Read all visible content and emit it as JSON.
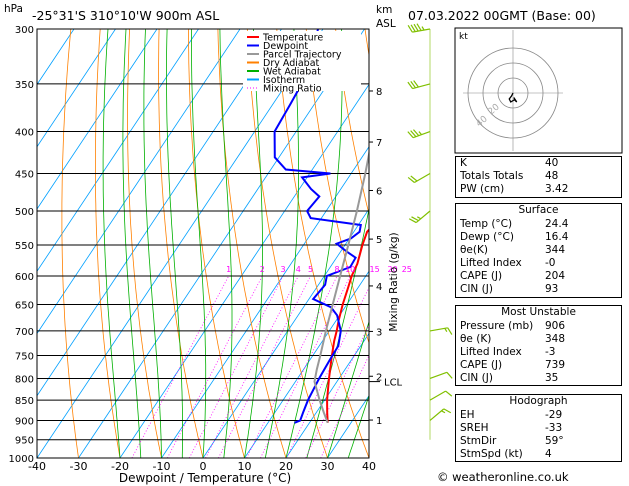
{
  "header": {
    "pressure_unit": "hPa",
    "height_unit_1": "km",
    "height_unit_2": "ASL",
    "location": "-25°31'S 310°10'W 900m ASL",
    "datetime": "07.03.2022 00GMT (Base: 00)"
  },
  "legend": [
    {
      "label": "Temperature",
      "color": "#ff0000"
    },
    {
      "label": "Dewpoint",
      "color": "#0000ff"
    },
    {
      "label": "Parcel Trajectory",
      "color": "#999999"
    },
    {
      "label": "Dry Adiabat",
      "color": "#ff8000"
    },
    {
      "label": "Wet Adiabat",
      "color": "#00b000"
    },
    {
      "label": "Isotherm",
      "color": "#00a0ff"
    },
    {
      "label": "Mixing Ratio",
      "color": "#ff00ff"
    }
  ],
  "chart_data": {
    "type": "line",
    "title": "-25°31'S 310°10'W 900m ASL",
    "xlabel": "Dewpoint / Temperature (°C)",
    "ylabel": "hPa",
    "mixing_ratio_label": "Mixing Ratio (g/kg)",
    "x_ticks": [
      -40,
      -30,
      -20,
      -10,
      0,
      10,
      20,
      30,
      40
    ],
    "xlim": [
      -40,
      40
    ],
    "pressure_levels": [
      300,
      350,
      400,
      450,
      500,
      550,
      600,
      650,
      700,
      750,
      800,
      850,
      900,
      950,
      1000
    ],
    "ylim": [
      1000,
      300
    ],
    "mixing_ratio_values": [
      "1",
      "2",
      "3",
      "4",
      "5",
      "8",
      "10",
      "15",
      "20",
      "25"
    ],
    "km_ticks": [
      {
        "label": "8",
        "p": 357
      },
      {
        "label": "7",
        "p": 412
      },
      {
        "label": "6",
        "p": 472
      },
      {
        "label": "5",
        "p": 541
      },
      {
        "label": "4",
        "p": 617
      },
      {
        "label": "3",
        "p": 701
      },
      {
        "label": "2",
        "p": 795
      },
      {
        "label": "1",
        "p": 899
      }
    ],
    "lcl_label": "LCL",
    "lcl_pressure": 807,
    "series": [
      {
        "name": "Temperature",
        "color": "#ff0000",
        "points": [
          [
            906,
            24.4
          ],
          [
            900,
            24.0
          ],
          [
            880,
            22.6
          ],
          [
            850,
            20.6
          ],
          [
            820,
            18.8
          ],
          [
            800,
            17.6
          ],
          [
            770,
            15.8
          ],
          [
            750,
            14.6
          ],
          [
            720,
            12.8
          ],
          [
            700,
            11.8
          ],
          [
            680,
            10.6
          ],
          [
            650,
            9.0
          ],
          [
            620,
            7.6
          ],
          [
            600,
            6.6
          ],
          [
            580,
            6.0
          ],
          [
            560,
            4.8
          ],
          [
            550,
            4.2
          ],
          [
            530,
            3.2
          ],
          [
            520,
            3.6
          ],
          [
            500,
            1.6
          ],
          [
            480,
            -0.4
          ],
          [
            460,
            -1.4
          ],
          [
            450,
            -2.4
          ],
          [
            420,
            -5.0
          ],
          [
            400,
            -7.8
          ],
          [
            370,
            -11.8
          ],
          [
            350,
            -15.2
          ],
          [
            320,
            -20.0
          ],
          [
            300,
            -23.8
          ]
        ]
      },
      {
        "name": "Dewpoint",
        "color": "#0000ff",
        "points": [
          [
            906,
            16.4
          ],
          [
            900,
            17.4
          ],
          [
            880,
            16.8
          ],
          [
            850,
            16.0
          ],
          [
            800,
            15.2
          ],
          [
            760,
            14.8
          ],
          [
            730,
            14.6
          ],
          [
            700,
            12.8
          ],
          [
            670,
            9.4
          ],
          [
            655,
            6.6
          ],
          [
            640,
            1.0
          ],
          [
            615,
            1.6
          ],
          [
            600,
            0.6
          ],
          [
            585,
            4.8
          ],
          [
            570,
            4.6
          ],
          [
            560,
            1.4
          ],
          [
            548,
            -2.2
          ],
          [
            540,
            0.4
          ],
          [
            530,
            1.4
          ],
          [
            520,
            0.6
          ],
          [
            510,
            -12.6
          ],
          [
            500,
            -14.6
          ],
          [
            480,
            -14.0
          ],
          [
            470,
            -17.2
          ],
          [
            455,
            -21.2
          ],
          [
            450,
            -15.0
          ],
          [
            445,
            -26.4
          ],
          [
            430,
            -31.0
          ],
          [
            400,
            -35.2
          ],
          [
            370,
            -35.8
          ],
          [
            340,
            -36.6
          ],
          [
            300,
            -41.2
          ]
        ]
      },
      {
        "name": "Parcel Trajectory",
        "color": "#999999",
        "points": [
          [
            906,
            24.4
          ],
          [
            880,
            21.8
          ],
          [
            850,
            18.8
          ],
          [
            807,
            14.6
          ],
          [
            780,
            13.2
          ],
          [
            750,
            11.8
          ],
          [
            700,
            9.2
          ],
          [
            650,
            6.6
          ],
          [
            600,
            3.8
          ],
          [
            550,
            0.8
          ],
          [
            500,
            -2.6
          ],
          [
            450,
            -6.6
          ],
          [
            400,
            -11.4
          ],
          [
            350,
            -17.4
          ],
          [
            300,
            -25.0
          ]
        ]
      }
    ],
    "hodograph": {
      "label": "kt",
      "ring_labels": [
        "20",
        "40"
      ],
      "points": [
        [
          0,
          0
        ],
        [
          -2,
          -4
        ],
        [
          -5,
          -8
        ],
        [
          -3,
          -12
        ],
        [
          2,
          -9
        ],
        [
          5,
          -12
        ],
        [
          1,
          -6
        ]
      ]
    },
    "wind_barbs": [
      {
        "p": 300,
        "dir": 260,
        "spd": 35
      },
      {
        "p": 350,
        "dir": 255,
        "spd": 30
      },
      {
        "p": 400,
        "dir": 250,
        "spd": 25
      },
      {
        "p": 450,
        "dir": 240,
        "spd": 20
      },
      {
        "p": 500,
        "dir": 230,
        "spd": 15
      },
      {
        "p": 700,
        "dir": 80,
        "spd": 5
      },
      {
        "p": 800,
        "dir": 70,
        "spd": 10
      },
      {
        "p": 850,
        "dir": 60,
        "spd": 10
      },
      {
        "p": 900,
        "dir": 50,
        "spd": 5
      }
    ]
  },
  "indices": {
    "general": [
      {
        "label": "K",
        "value": "40"
      },
      {
        "label": "Totals Totals",
        "value": "48"
      },
      {
        "label": "PW (cm)",
        "value": "3.42"
      }
    ],
    "surface_title": "Surface",
    "surface": [
      {
        "label": "Temp (°C)",
        "value": "24.4"
      },
      {
        "label": "Dewp (°C)",
        "value": "16.4"
      },
      {
        "label": "θe(K)",
        "value": "344"
      },
      {
        "label": "Lifted Index",
        "value": "-0"
      },
      {
        "label": "CAPE (J)",
        "value": "204"
      },
      {
        "label": "CIN (J)",
        "value": "93"
      }
    ],
    "mu_title": "Most Unstable",
    "mu": [
      {
        "label": "Pressure (mb)",
        "value": "906"
      },
      {
        "label": "θe (K)",
        "value": "348"
      },
      {
        "label": "Lifted Index",
        "value": "-3"
      },
      {
        "label": "CAPE (J)",
        "value": "739"
      },
      {
        "label": "CIN (J)",
        "value": "35"
      }
    ],
    "hodo_title": "Hodograph",
    "hodo": [
      {
        "label": "EH",
        "value": "-29"
      },
      {
        "label": "SREH",
        "value": "-33"
      },
      {
        "label": "StmDir",
        "value": "59°"
      },
      {
        "label": "StmSpd (kt)",
        "value": "4"
      }
    ]
  },
  "footer": "© weatheronline.co.uk"
}
